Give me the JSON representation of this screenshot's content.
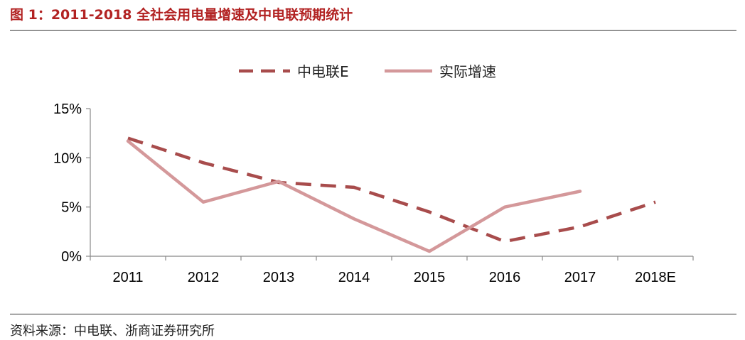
{
  "figure": {
    "title": "图 1：2011-2018 全社会用电量增速及中电联预期统计",
    "source": "资料来源：中电联、浙商证券研究所"
  },
  "chart_data": {
    "type": "line",
    "categories": [
      "2011",
      "2012",
      "2013",
      "2014",
      "2015",
      "2016",
      "2017",
      "2018E"
    ],
    "yticks": [
      "0%",
      "5%",
      "10%",
      "15%"
    ],
    "ylim": [
      0,
      15
    ],
    "grid": false,
    "legend_position": "top",
    "series": [
      {
        "name": "中电联E",
        "style": "dashed",
        "color": "#a84c4c",
        "values": [
          12.0,
          9.5,
          7.5,
          7.0,
          4.5,
          1.5,
          3.0,
          5.5
        ]
      },
      {
        "name": "实际增速",
        "style": "solid",
        "color": "#d4989a",
        "values": [
          11.7,
          5.5,
          7.6,
          3.8,
          0.5,
          5.0,
          6.6,
          null
        ]
      }
    ]
  }
}
